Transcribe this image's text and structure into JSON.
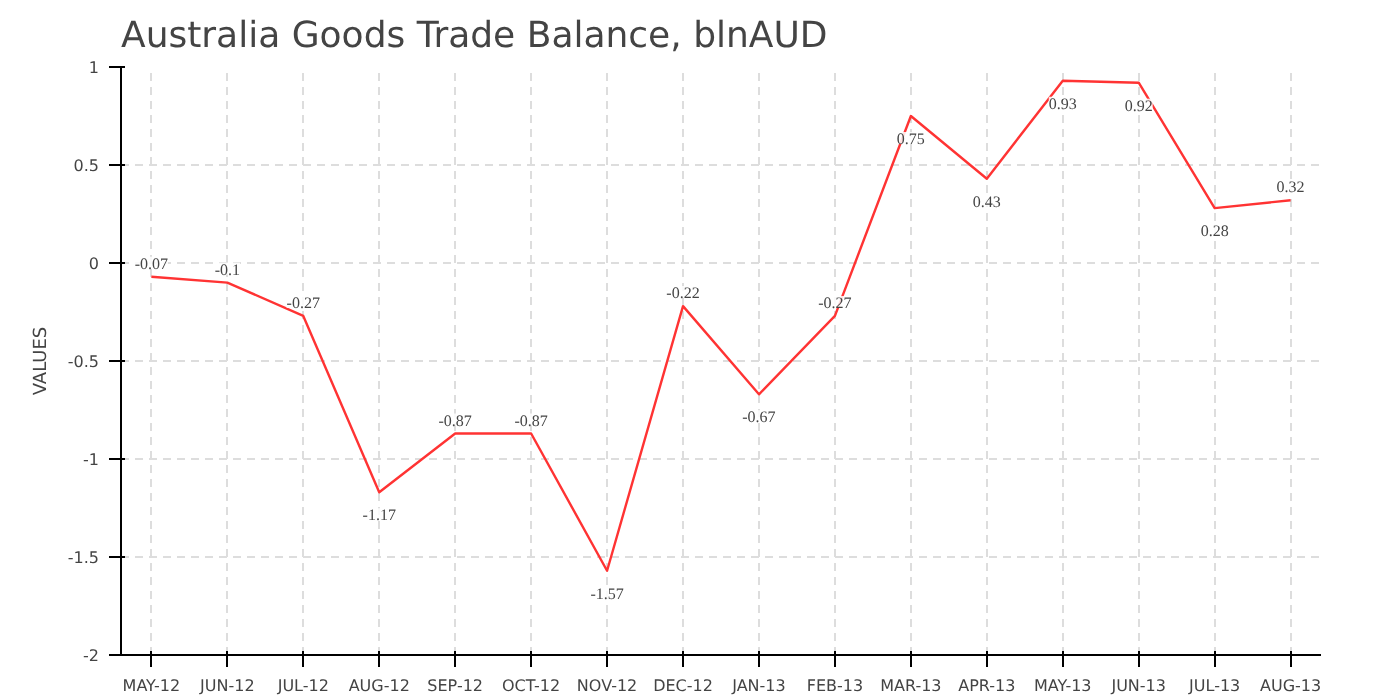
{
  "chart_data": {
    "type": "line",
    "title": "Australia Goods Trade Balance, blnAUD",
    "ylabel": "VALUES",
    "categories": [
      "MAY-12",
      "JUN-12",
      "JUL-12",
      "AUG-12",
      "SEP-12",
      "OCT-12",
      "NOV-12",
      "DEC-12",
      "JAN-13",
      "FEB-13",
      "MAR-13",
      "APR-13",
      "MAY-13",
      "JUN-13",
      "JUL-13",
      "AUG-13"
    ],
    "series": [
      {
        "color": "#ff3333",
        "values": [
          -0.07,
          -0.1,
          -0.27,
          -1.17,
          -0.87,
          -0.87,
          -1.57,
          -0.22,
          -0.67,
          -0.27,
          0.75,
          0.43,
          0.93,
          0.92,
          0.28,
          0.32
        ]
      }
    ],
    "ylim": [
      -2,
      1
    ],
    "yticks": [
      -2,
      -1.5,
      -1,
      -0.5,
      0,
      0.5,
      1
    ],
    "grid": true,
    "data_labels": true,
    "line_style": "solid",
    "marker": "none"
  }
}
